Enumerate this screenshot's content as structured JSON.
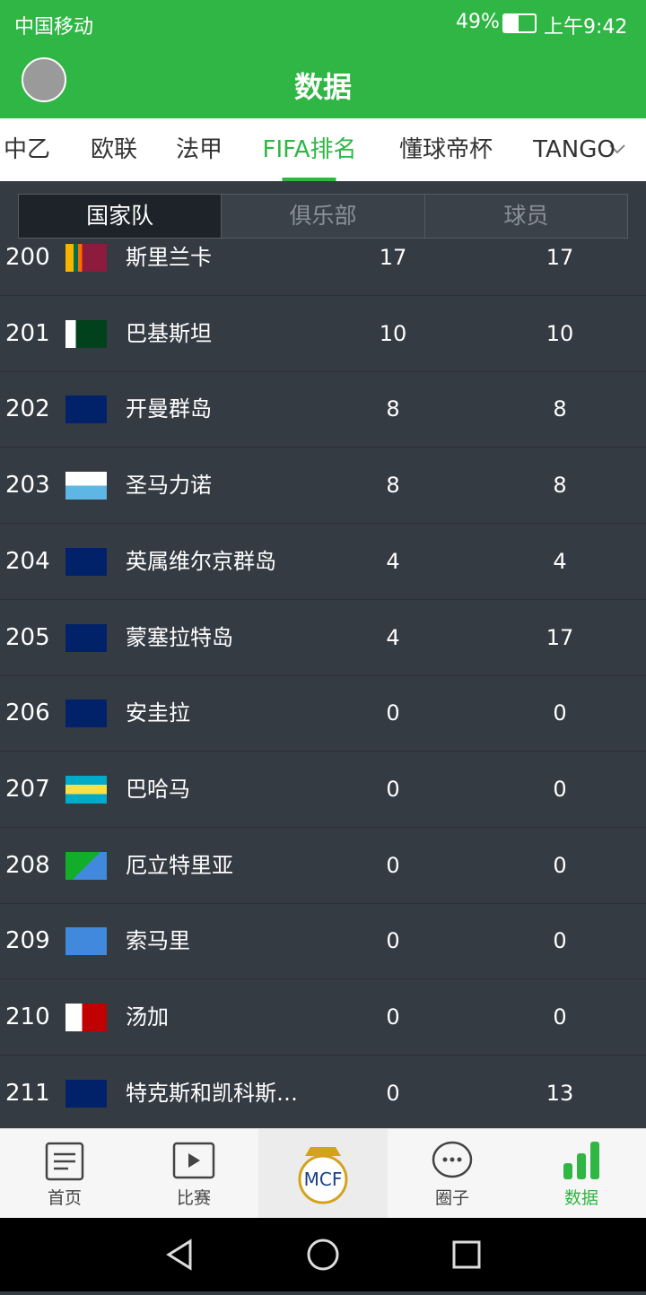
{
  "status_bar": {
    "carrier": "中国移动",
    "battery": "49%",
    "time": "上午9:42"
  },
  "header": {
    "title": "数据"
  },
  "tabs": [
    "中乙",
    "欧联",
    "法甲",
    "FIFA排名",
    "懂球帝杯",
    "TANGO"
  ],
  "active_tab": 3,
  "segments": [
    "国家队",
    "俱乐部",
    "球员"
  ],
  "active_segment": 0,
  "table": {
    "rows": [
      [
        "200",
        "斯里兰卡",
        17,
        17
      ],
      [
        "201",
        "巴基斯坦",
        10,
        10
      ],
      [
        "202",
        "开曼群岛",
        8,
        8
      ],
      [
        "203",
        "圣马力诺",
        8,
        8
      ],
      [
        "204",
        "英属维尔京群岛",
        4,
        4
      ],
      [
        "205",
        "蒙塞拉特岛",
        4,
        17
      ],
      [
        "206",
        "安圭拉",
        0,
        0
      ],
      [
        "207",
        "巴哈马",
        0,
        0
      ],
      [
        "208",
        "厄立特里亚",
        0,
        0
      ],
      [
        "209",
        "索马里",
        0,
        0
      ],
      [
        "210",
        "汤加",
        0,
        0
      ],
      [
        "211",
        "特克斯和凯科斯…",
        0,
        13
      ]
    ]
  },
  "bottom_nav": [
    "首页",
    "比赛",
    "圈子",
    "数据"
  ],
  "active_nav": 3
}
